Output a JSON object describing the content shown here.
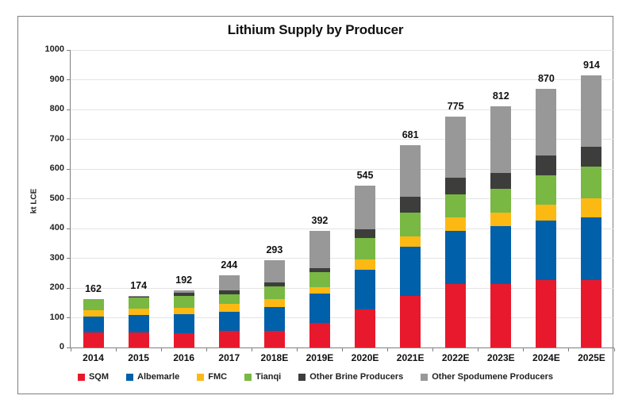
{
  "chart_data": {
    "type": "bar",
    "stacked": true,
    "title": "Lithium Supply by Producer",
    "xlabel": "",
    "ylabel": "kt LCE",
    "ylim": [
      0,
      1000
    ],
    "ytick_step": 100,
    "grid": true,
    "legend_position": "bottom",
    "categories": [
      "2014",
      "2015",
      "2016",
      "2017",
      "2018E",
      "2019E",
      "2020E",
      "2021E",
      "2022E",
      "2023E",
      "2024E",
      "2025E"
    ],
    "totals": [
      162,
      174,
      192,
      244,
      293,
      392,
      545,
      681,
      775,
      812,
      870,
      914
    ],
    "series": [
      {
        "name": "SQM",
        "color": "#e8192c",
        "values": [
          50,
          52,
          49,
          56,
          57,
          82,
          129,
          173,
          213,
          213,
          227,
          227
        ]
      },
      {
        "name": "Albemarle",
        "color": "#0060a9",
        "values": [
          55,
          57,
          63,
          65,
          80,
          99,
          133,
          165,
          180,
          196,
          200,
          210
        ]
      },
      {
        "name": "FMC",
        "color": "#fdb913",
        "values": [
          20,
          21,
          21,
          25,
          25,
          23,
          33,
          36,
          45,
          45,
          53,
          65
        ]
      },
      {
        "name": "Tianqi",
        "color": "#79b843",
        "values": [
          37,
          38,
          41,
          33,
          43,
          49,
          74,
          80,
          78,
          80,
          98,
          107
        ]
      },
      {
        "name": "Other Brine Producers",
        "color": "#3d3d3c",
        "values": [
          0,
          2,
          9,
          14,
          13,
          13,
          29,
          53,
          55,
          53,
          67,
          67
        ]
      },
      {
        "name": "Other Spodumene Producers",
        "color": "#989898",
        "values": [
          0,
          4,
          9,
          51,
          75,
          126,
          147,
          174,
          204,
          225,
          225,
          238
        ]
      }
    ]
  }
}
